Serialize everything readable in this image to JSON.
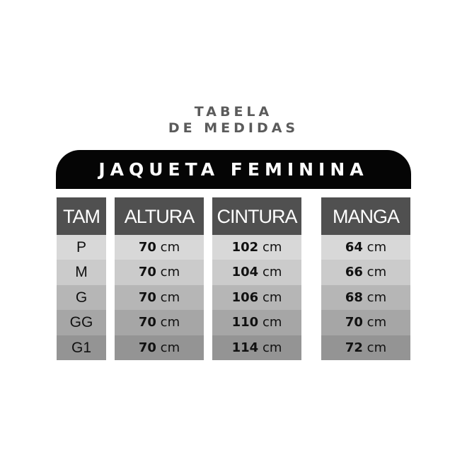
{
  "title_line1": "TABELA",
  "title_line2": "DE MEDIDAS",
  "banner": "JAQUETA FEMININA",
  "colors": {
    "banner": "#050505",
    "header": "#505050",
    "title": "#5b5b5b"
  },
  "columns": [
    {
      "header": "TAM",
      "values": [
        "P",
        "M",
        "G",
        "GG",
        "G1"
      ]
    },
    {
      "header": "ALTURA",
      "values": [
        "70",
        "70",
        "70",
        "70",
        "70"
      ],
      "unit": "cm"
    },
    {
      "header": "CINTURA",
      "values": [
        "102",
        "104",
        "106",
        "110",
        "114"
      ],
      "unit": "cm"
    },
    {
      "header": "MANGA",
      "values": [
        "64",
        "66",
        "68",
        "70",
        "72"
      ],
      "unit": "cm"
    }
  ]
}
